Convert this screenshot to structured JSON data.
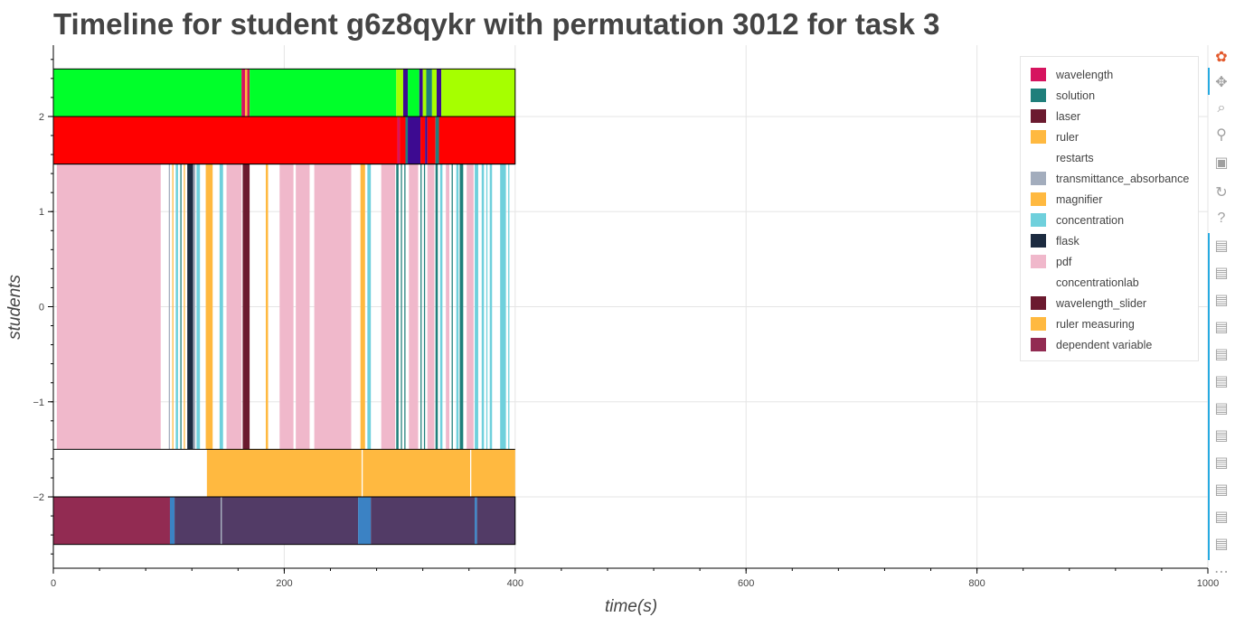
{
  "chart_data": {
    "type": "timeline",
    "title": "Timeline for student g6z8qykr with permutation 3012 for task 3",
    "xlabel": "time(s)",
    "ylabel": "students",
    "xlim": [
      0,
      1000
    ],
    "ylim": [
      -2.75,
      2.75
    ],
    "x_ticks": [
      0,
      200,
      400,
      600,
      800,
      1000
    ],
    "y_ticks": [
      -2,
      -1,
      0,
      1,
      2
    ],
    "y_tick_labels": [
      "−2",
      "−1",
      "0",
      "1",
      "2"
    ],
    "grid": true,
    "legend_position": "top-right",
    "legend": [
      {
        "name": "wavelength",
        "color": "#d6145f"
      },
      {
        "name": "solution",
        "color": "#1f7f7b"
      },
      {
        "name": "laser",
        "color": "#6b1a2f"
      },
      {
        "name": "ruler",
        "color": "#ffb940"
      },
      {
        "name": "restarts",
        "color": "#ffffff"
      },
      {
        "name": "transmittance_absorbance",
        "color": "#a3adbd"
      },
      {
        "name": "magnifier",
        "color": "#ffb940"
      },
      {
        "name": "concentration",
        "color": "#6fd0dc"
      },
      {
        "name": "flask",
        "color": "#1c2b40"
      },
      {
        "name": "pdf",
        "color": "#f0b8cb"
      },
      {
        "name": "concentrationlab",
        "color": "#ffffff"
      },
      {
        "name": "wavelength_slider",
        "color": "#6b1a2f"
      },
      {
        "name": "ruler measuring",
        "color": "#ffb940"
      },
      {
        "name": "dependent variable",
        "color": "#922b52"
      }
    ],
    "rows": [
      {
        "y_range": [
          2.0,
          2.5
        ],
        "segments": [
          {
            "start": 0,
            "end": 163,
            "color": "#00ff2a"
          },
          {
            "start": 163,
            "end": 166,
            "color": "#d6145f"
          },
          {
            "start": 166,
            "end": 168,
            "color": "#ffb940"
          },
          {
            "start": 168,
            "end": 170,
            "color": "#d6145f"
          },
          {
            "start": 170,
            "end": 297,
            "color": "#00ff2a"
          },
          {
            "start": 297,
            "end": 303,
            "color": "#a6ff00"
          },
          {
            "start": 303,
            "end": 307,
            "color": "#3d0a91"
          },
          {
            "start": 307,
            "end": 317,
            "color": "#00ff2a"
          },
          {
            "start": 317,
            "end": 320,
            "color": "#3d0a91"
          },
          {
            "start": 320,
            "end": 323,
            "color": "#a6ff00"
          },
          {
            "start": 323,
            "end": 328,
            "color": "#1f7f7b"
          },
          {
            "start": 328,
            "end": 332,
            "color": "#a6ff00"
          },
          {
            "start": 332,
            "end": 336,
            "color": "#3d0a91"
          },
          {
            "start": 336,
            "end": 400,
            "color": "#a6ff00"
          }
        ]
      },
      {
        "y_range": [
          1.5,
          2.0
        ],
        "segments": [
          {
            "start": 0,
            "end": 298,
            "color": "#ff0000"
          },
          {
            "start": 298,
            "end": 300,
            "color": "#d6145f"
          },
          {
            "start": 300,
            "end": 305,
            "color": "#ff0000"
          },
          {
            "start": 305,
            "end": 307,
            "color": "#1f7f7b"
          },
          {
            "start": 307,
            "end": 318,
            "color": "#3d0a91"
          },
          {
            "start": 318,
            "end": 322,
            "color": "#ff0000"
          },
          {
            "start": 322,
            "end": 324,
            "color": "#3d0a91"
          },
          {
            "start": 324,
            "end": 331,
            "color": "#ff0000"
          },
          {
            "start": 331,
            "end": 334,
            "color": "#1f7f7b"
          },
          {
            "start": 334,
            "end": 400,
            "color": "#ff0000"
          }
        ]
      },
      {
        "y_range": [
          -1.5,
          1.5
        ],
        "segments": [
          {
            "start": 3,
            "end": 93,
            "color": "#f0b8cb"
          },
          {
            "start": 100,
            "end": 101,
            "color": "#a3adbd"
          },
          {
            "start": 103,
            "end": 104,
            "color": "#ffb940"
          },
          {
            "start": 106,
            "end": 108,
            "color": "#6fd0dc"
          },
          {
            "start": 110,
            "end": 111,
            "color": "#1f7f7b"
          },
          {
            "start": 113,
            "end": 114,
            "color": "#ffb940"
          },
          {
            "start": 116,
            "end": 121,
            "color": "#1c2b40"
          },
          {
            "start": 121,
            "end": 123,
            "color": "#a3adbd"
          },
          {
            "start": 124,
            "end": 127,
            "color": "#6fd0dc"
          },
          {
            "start": 132,
            "end": 138,
            "color": "#ffb940"
          },
          {
            "start": 144,
            "end": 147,
            "color": "#6fd0dc"
          },
          {
            "start": 150,
            "end": 163,
            "color": "#f0b8cb"
          },
          {
            "start": 164,
            "end": 170,
            "color": "#6b1a2f"
          },
          {
            "start": 184,
            "end": 186,
            "color": "#ffb940"
          },
          {
            "start": 196,
            "end": 208,
            "color": "#f0b8cb"
          },
          {
            "start": 210,
            "end": 222,
            "color": "#f0b8cb"
          },
          {
            "start": 226,
            "end": 258,
            "color": "#f0b8cb"
          },
          {
            "start": 266,
            "end": 270,
            "color": "#ffb940"
          },
          {
            "start": 272,
            "end": 275,
            "color": "#6fd0dc"
          },
          {
            "start": 284,
            "end": 296,
            "color": "#f0b8cb"
          },
          {
            "start": 297,
            "end": 299,
            "color": "#1f7f7b"
          },
          {
            "start": 301,
            "end": 302,
            "color": "#1f7f7b"
          },
          {
            "start": 304,
            "end": 305,
            "color": "#1f7f7b"
          },
          {
            "start": 308,
            "end": 316,
            "color": "#f0b8cb"
          },
          {
            "start": 318,
            "end": 319,
            "color": "#1f7f7b"
          },
          {
            "start": 321,
            "end": 322,
            "color": "#1f7f7b"
          },
          {
            "start": 324,
            "end": 330,
            "color": "#f0b8cb"
          },
          {
            "start": 331,
            "end": 333,
            "color": "#1f7f7b"
          },
          {
            "start": 335,
            "end": 337,
            "color": "#6fd0dc"
          },
          {
            "start": 340,
            "end": 343,
            "color": "#f0b8cb"
          },
          {
            "start": 345,
            "end": 346,
            "color": "#1f7f7b"
          },
          {
            "start": 349,
            "end": 351,
            "color": "#6fd0dc"
          },
          {
            "start": 352,
            "end": 355,
            "color": "#1f7f7b"
          },
          {
            "start": 358,
            "end": 364,
            "color": "#f0b8cb"
          },
          {
            "start": 365,
            "end": 368,
            "color": "#6fd0dc"
          },
          {
            "start": 371,
            "end": 373,
            "color": "#6fd0dc"
          },
          {
            "start": 375,
            "end": 376,
            "color": "#6fd0dc"
          },
          {
            "start": 378,
            "end": 380,
            "color": "#6fd0dc"
          },
          {
            "start": 387,
            "end": 392,
            "color": "#6fd0dc"
          },
          {
            "start": 394,
            "end": 395,
            "color": "#6fd0dc"
          }
        ]
      },
      {
        "y_range": [
          -2.0,
          -1.5
        ],
        "segments": [
          {
            "start": 133,
            "end": 267,
            "color": "#ffb940"
          },
          {
            "start": 268,
            "end": 361,
            "color": "#ffb940"
          },
          {
            "start": 362,
            "end": 400,
            "color": "#ffb940"
          }
        ]
      },
      {
        "y_range": [
          -2.5,
          -2.0
        ],
        "segments": [
          {
            "start": 0,
            "end": 101,
            "color": "#922b52"
          },
          {
            "start": 101,
            "end": 105,
            "color": "#3b82c4"
          },
          {
            "start": 105,
            "end": 145,
            "color": "#523b66"
          },
          {
            "start": 145,
            "end": 146,
            "color": "#a3adbd"
          },
          {
            "start": 146,
            "end": 264,
            "color": "#523b66"
          },
          {
            "start": 264,
            "end": 275,
            "color": "#3b82c4"
          },
          {
            "start": 275,
            "end": 365,
            "color": "#523b66"
          },
          {
            "start": 365,
            "end": 367,
            "color": "#3b82c4"
          },
          {
            "start": 367,
            "end": 400,
            "color": "#523b66"
          }
        ]
      }
    ],
    "row_outline": [
      [
        1.5,
        2.5
      ],
      [
        -2.5,
        -2.0
      ]
    ],
    "row_outline_x": [
      0,
      400
    ]
  },
  "toolbar": {
    "tools": [
      {
        "name": "bokeh-logo-icon",
        "glyph": "✿",
        "color": "#e3592c"
      },
      {
        "name": "pan-icon",
        "glyph": "✥",
        "color": "#a0a0a0"
      },
      {
        "name": "box-zoom-icon",
        "glyph": "⌕",
        "color": "#a0a0a0"
      },
      {
        "name": "wheel-zoom-icon",
        "glyph": "⚲",
        "color": "#a0a0a0"
      },
      {
        "name": "save-icon",
        "glyph": "▣",
        "color": "#a0a0a0"
      },
      {
        "name": "reset-icon",
        "glyph": "↻",
        "color": "#a0a0a0"
      },
      {
        "name": "help-icon",
        "glyph": "?",
        "color": "#a0a0a0"
      },
      {
        "name": "hover-icon",
        "glyph": "▤",
        "color": "#a0a0a0"
      },
      {
        "name": "more-icon",
        "glyph": "⋯",
        "color": "#a0a0a0"
      }
    ]
  }
}
